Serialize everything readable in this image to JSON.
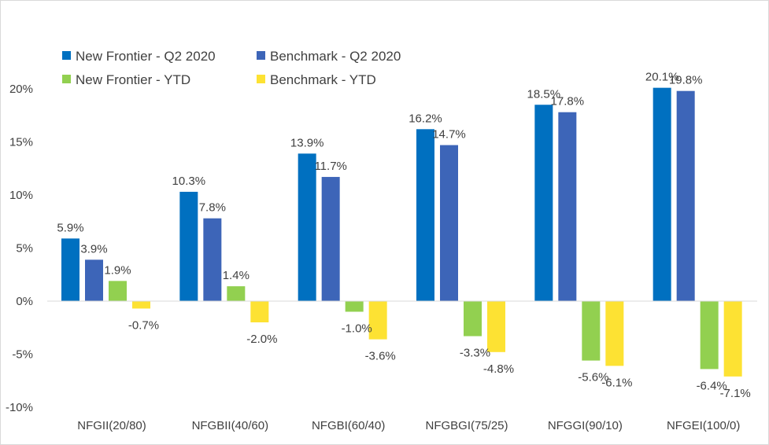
{
  "chart_data": {
    "type": "bar",
    "title": "",
    "xlabel": "",
    "ylabel": "",
    "ylim": [
      -10,
      20
    ],
    "yticks": [
      20,
      15,
      10,
      5,
      0,
      -5,
      -10
    ],
    "ytick_labels": [
      "20%",
      "15%",
      "10%",
      "5%",
      "0%",
      "-5%",
      "-10%"
    ],
    "grid": false,
    "legend_position": "top-left",
    "categories": [
      "NFGII(20/80)",
      "NFGBII(40/60)",
      "NFGBI(60/40)",
      "NFGBGI(75/25)",
      "NFGGI(90/10)",
      "NFGEI(100/0)"
    ],
    "series": [
      {
        "name": "New Frontier - Q2 2020",
        "color": "#0070c0",
        "values": [
          5.9,
          10.3,
          13.9,
          16.2,
          18.5,
          20.1
        ],
        "labels": [
          "5.9%",
          "10.3%",
          "13.9%",
          "16.2%",
          "18.5%",
          "20.1%"
        ]
      },
      {
        "name": "Benchmark - Q2 2020",
        "color": "#3d65b8",
        "values": [
          3.9,
          7.8,
          11.7,
          14.7,
          17.8,
          19.8
        ],
        "labels": [
          "3.9%",
          "7.8%",
          "11.7%",
          "14.7%",
          "17.8%",
          "19.8%"
        ]
      },
      {
        "name": "New Frontier - YTD",
        "color": "#92d050",
        "values": [
          1.9,
          1.4,
          -1.0,
          -3.3,
          -5.6,
          -6.4
        ],
        "labels": [
          "1.9%",
          "1.4%",
          "-1.0%",
          "-3.3%",
          "-5.6%",
          "-6.4%"
        ]
      },
      {
        "name": "Benchmark - YTD",
        "color": "#fde233",
        "values": [
          -0.7,
          -2.0,
          -3.6,
          -4.8,
          -6.1,
          -7.1
        ],
        "labels": [
          "-0.7%",
          "-2.0%",
          "-3.6%",
          "-4.8%",
          "-6.1%",
          "-7.1%"
        ]
      }
    ]
  }
}
